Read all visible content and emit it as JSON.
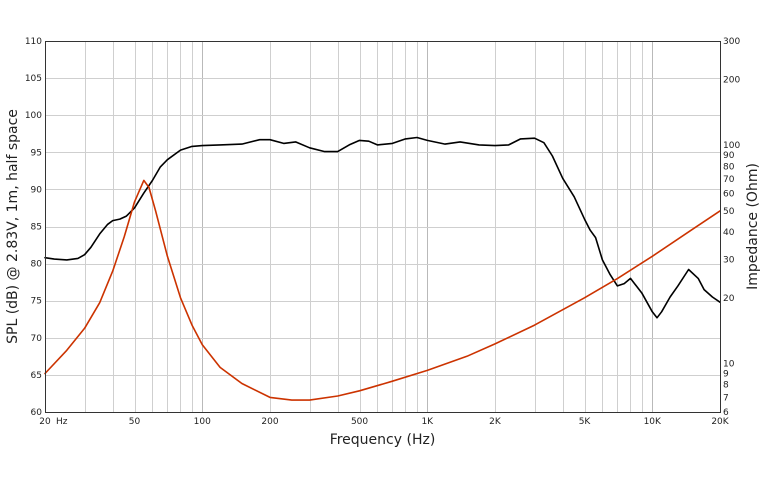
{
  "chart_data": {
    "type": "line",
    "title": "",
    "xlabel": "Frequency (Hz)",
    "ylabel_left": "SPL (dB) @ 2.83V, 1m, half space",
    "ylabel_right": "Impedance (Ohm)",
    "x_scale": "log",
    "xlim": [
      20,
      20000
    ],
    "ylim_left": [
      60,
      110
    ],
    "ylim_right": [
      6,
      300
    ],
    "y_right_scale": "log",
    "grid": true,
    "x_ticks": [
      {
        "value": 20,
        "label": "20"
      },
      {
        "value": 50,
        "label": "50"
      },
      {
        "value": 100,
        "label": "100"
      },
      {
        "value": 200,
        "label": "200"
      },
      {
        "value": 500,
        "label": "500"
      },
      {
        "value": 1000,
        "label": "1K"
      },
      {
        "value": 2000,
        "label": "2K"
      },
      {
        "value": 5000,
        "label": "5K"
      },
      {
        "value": 10000,
        "label": "10K"
      },
      {
        "value": 20000,
        "label": "20K"
      }
    ],
    "x_unit_label": "Hz",
    "y_left_ticks": [
      "60",
      "65",
      "70",
      "75",
      "80",
      "85",
      "90",
      "95",
      "100",
      "105",
      "110"
    ],
    "y_right_ticks": [
      {
        "value": 6,
        "label": "6"
      },
      {
        "value": 7,
        "label": "7"
      },
      {
        "value": 8,
        "label": "8"
      },
      {
        "value": 9,
        "label": "9"
      },
      {
        "value": 10,
        "label": "10"
      },
      {
        "value": 20,
        "label": "20"
      },
      {
        "value": 30,
        "label": "30"
      },
      {
        "value": 40,
        "label": "40"
      },
      {
        "value": 50,
        "label": "50"
      },
      {
        "value": 60,
        "label": "60"
      },
      {
        "value": 70,
        "label": "70"
      },
      {
        "value": 80,
        "label": "80"
      },
      {
        "value": 90,
        "label": "90"
      },
      {
        "value": 100,
        "label": "100"
      },
      {
        "value": 200,
        "label": "200"
      },
      {
        "value": 300,
        "label": "300"
      }
    ],
    "series": [
      {
        "axis": "left",
        "color": "#000000",
        "points": [
          [
            20,
            80.8
          ],
          [
            22,
            80.6
          ],
          [
            25,
            80.5
          ],
          [
            28,
            80.7
          ],
          [
            30,
            81.2
          ],
          [
            32,
            82.2
          ],
          [
            35,
            84.0
          ],
          [
            38,
            85.3
          ],
          [
            40,
            85.8
          ],
          [
            43,
            86.0
          ],
          [
            46,
            86.4
          ],
          [
            50,
            87.5
          ],
          [
            55,
            89.5
          ],
          [
            60,
            91.2
          ],
          [
            65,
            93.0
          ],
          [
            70,
            94.0
          ],
          [
            80,
            95.3
          ],
          [
            90,
            95.8
          ],
          [
            100,
            95.9
          ],
          [
            120,
            96.0
          ],
          [
            150,
            96.1
          ],
          [
            180,
            96.7
          ],
          [
            200,
            96.7
          ],
          [
            230,
            96.2
          ],
          [
            260,
            96.4
          ],
          [
            300,
            95.6
          ],
          [
            350,
            95.1
          ],
          [
            400,
            95.1
          ],
          [
            450,
            96.0
          ],
          [
            500,
            96.6
          ],
          [
            550,
            96.5
          ],
          [
            600,
            96.0
          ],
          [
            700,
            96.2
          ],
          [
            800,
            96.8
          ],
          [
            900,
            97.0
          ],
          [
            1000,
            96.6
          ],
          [
            1200,
            96.1
          ],
          [
            1400,
            96.4
          ],
          [
            1700,
            96.0
          ],
          [
            2000,
            95.9
          ],
          [
            2300,
            96.0
          ],
          [
            2600,
            96.8
          ],
          [
            3000,
            96.9
          ],
          [
            3300,
            96.3
          ],
          [
            3600,
            94.5
          ],
          [
            4000,
            91.5
          ],
          [
            4500,
            89.0
          ],
          [
            5000,
            86.0
          ],
          [
            5300,
            84.5
          ],
          [
            5600,
            83.5
          ],
          [
            6000,
            80.5
          ],
          [
            6500,
            78.5
          ],
          [
            7000,
            77.0
          ],
          [
            7500,
            77.3
          ],
          [
            8000,
            78.0
          ],
          [
            9000,
            76.0
          ],
          [
            10000,
            73.5
          ],
          [
            10500,
            72.7
          ],
          [
            11000,
            73.5
          ],
          [
            12000,
            75.5
          ],
          [
            13000,
            77.0
          ],
          [
            14500,
            79.2
          ],
          [
            16000,
            78.0
          ],
          [
            17000,
            76.5
          ],
          [
            18500,
            75.5
          ],
          [
            20000,
            74.8
          ]
        ]
      },
      {
        "axis": "right",
        "color": "#cc3300",
        "points": [
          [
            20,
            9.0
          ],
          [
            25,
            11.5
          ],
          [
            30,
            14.5
          ],
          [
            35,
            19.0
          ],
          [
            40,
            26.5
          ],
          [
            45,
            38.0
          ],
          [
            50,
            55.0
          ],
          [
            55,
            69.0
          ],
          [
            58,
            64.0
          ],
          [
            62,
            50.0
          ],
          [
            70,
            31.0
          ],
          [
            80,
            20.0
          ],
          [
            90,
            15.0
          ],
          [
            100,
            12.2
          ],
          [
            120,
            9.6
          ],
          [
            150,
            8.1
          ],
          [
            200,
            7.0
          ],
          [
            250,
            6.8
          ],
          [
            300,
            6.8
          ],
          [
            400,
            7.1
          ],
          [
            500,
            7.5
          ],
          [
            700,
            8.3
          ],
          [
            1000,
            9.3
          ],
          [
            1500,
            10.8
          ],
          [
            2000,
            12.3
          ],
          [
            3000,
            15.0
          ],
          [
            5000,
            20.0
          ],
          [
            7000,
            24.5
          ],
          [
            10000,
            31.0
          ],
          [
            15000,
            41.0
          ],
          [
            20000,
            50.0
          ]
        ]
      }
    ]
  }
}
